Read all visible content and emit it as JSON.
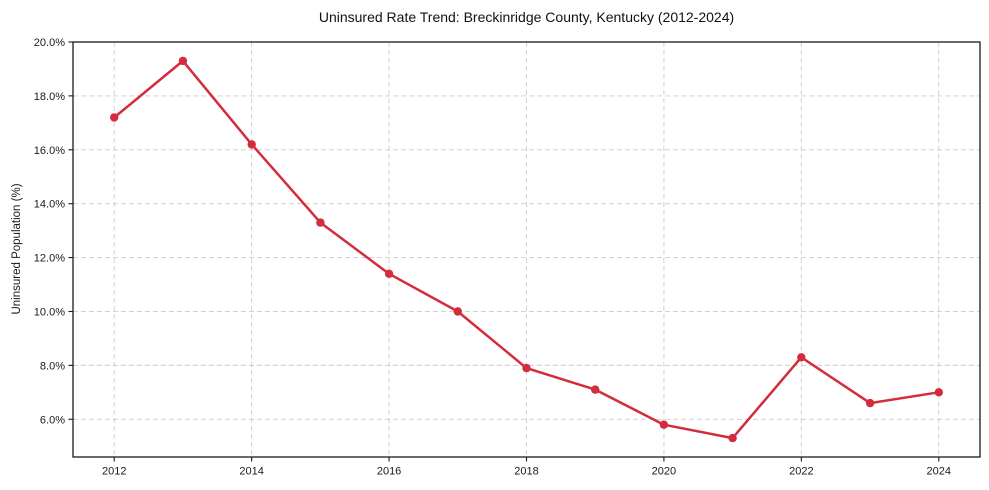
{
  "chart_data": {
    "type": "line",
    "title": "Uninsured Rate Trend: Breckinridge County, Kentucky (2012-2024)",
    "xlabel": "",
    "ylabel": "Uninsured Population (%)",
    "x": [
      2012,
      2013,
      2014,
      2015,
      2016,
      2017,
      2018,
      2019,
      2020,
      2021,
      2022,
      2023,
      2024
    ],
    "values": [
      17.2,
      19.3,
      16.2,
      13.3,
      11.4,
      10.0,
      7.9,
      7.1,
      5.8,
      5.3,
      8.3,
      6.6,
      7.0
    ],
    "xlim": [
      2011.4,
      2024.6
    ],
    "ylim": [
      4.6,
      20.0
    ],
    "xticks": {
      "values": [
        2012,
        2014,
        2016,
        2018,
        2020,
        2022,
        2024
      ],
      "labels": [
        "2012",
        "2014",
        "2016",
        "2018",
        "2020",
        "2022",
        "2024"
      ]
    },
    "yticks": {
      "values": [
        6,
        8,
        10,
        12,
        14,
        16,
        18,
        20
      ],
      "labels": [
        "6.0%",
        "8.0%",
        "10.0%",
        "12.0%",
        "14.0%",
        "16.0%",
        "18.0%",
        "20.0%"
      ]
    },
    "grid": true,
    "grid_style": "dashed",
    "legend": false,
    "marker": "circle",
    "colors": {
      "line": "#d32c3c",
      "marker": "#d32c3c",
      "grid": "#cccccc",
      "spine": "#1a1a1a",
      "tick_label": "#1a1a1a",
      "background": "#ffffff"
    }
  }
}
